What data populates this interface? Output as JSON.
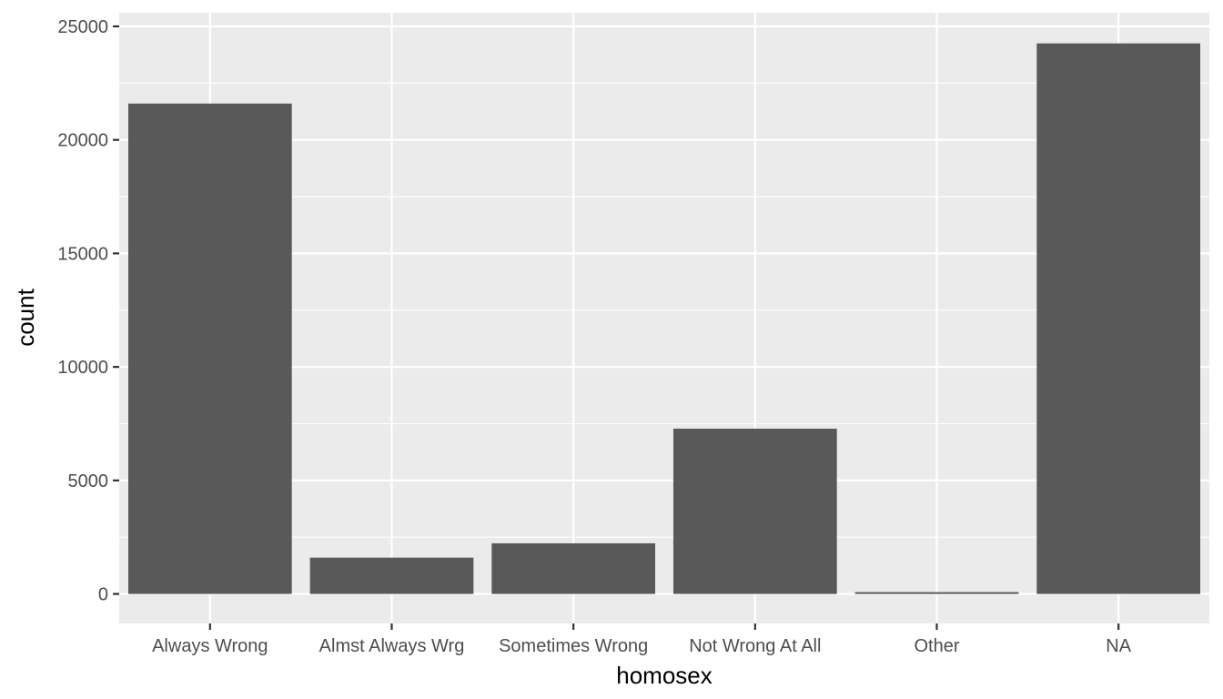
{
  "chart_data": {
    "type": "bar",
    "xlabel": "homosex",
    "ylabel": "count",
    "categories": [
      "Always Wrong",
      "Almst Always Wrg",
      "Sometimes Wrong",
      "Not Wrong At All",
      "Other",
      "NA"
    ],
    "values": [
      21600,
      1600,
      2230,
      7280,
      80,
      24250
    ],
    "ylim": [
      -1300,
      25600
    ],
    "yticks": [
      0,
      5000,
      10000,
      15000,
      20000,
      25000
    ],
    "ytick_labels": [
      "0",
      "5000",
      "10000",
      "15000",
      "20000",
      "25000"
    ],
    "grid": true,
    "legend": "none",
    "colors": {
      "bar": "#595959",
      "panel": "#ebebeb",
      "grid": "#ffffff",
      "tick_text": "#4d4d4d",
      "tick_mark": "#333333"
    }
  }
}
